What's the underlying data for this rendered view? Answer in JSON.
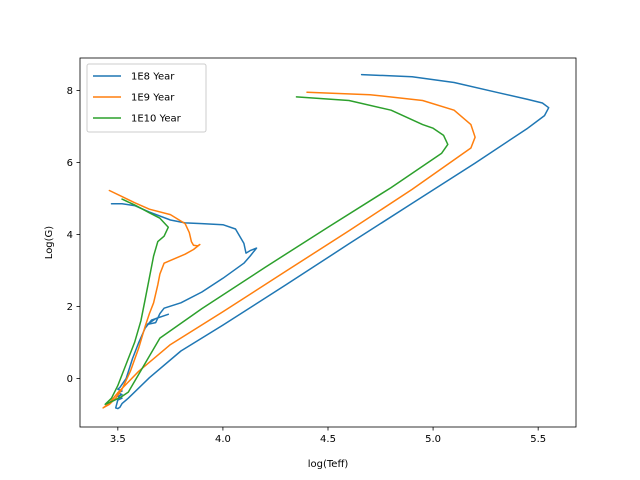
{
  "chart_data": {
    "type": "line",
    "xlabel": "log(Teff)",
    "ylabel": "Log(G)",
    "xlim": [
      3.32,
      5.68
    ],
    "ylim": [
      -1.35,
      8.9
    ],
    "grid": false,
    "legend_position": "top-left",
    "x_ticks": [
      {
        "value": 3.5,
        "label": "3.5"
      },
      {
        "value": 4.0,
        "label": "4.0"
      },
      {
        "value": 4.5,
        "label": "4.5"
      },
      {
        "value": 5.0,
        "label": "5.0"
      },
      {
        "value": 5.5,
        "label": "5.5"
      }
    ],
    "y_ticks": [
      {
        "value": 0,
        "label": "0"
      },
      {
        "value": 2,
        "label": "2"
      },
      {
        "value": 4,
        "label": "4"
      },
      {
        "value": 6,
        "label": "6"
      },
      {
        "value": 8,
        "label": "8"
      }
    ],
    "series": [
      {
        "name": "1E8 Year",
        "color": "#1f77b4",
        "points": [
          [
            4.66,
            8.44
          ],
          [
            4.9,
            8.38
          ],
          [
            5.1,
            8.22
          ],
          [
            5.3,
            7.95
          ],
          [
            5.45,
            7.75
          ],
          [
            5.52,
            7.65
          ],
          [
            5.55,
            7.52
          ],
          [
            5.53,
            7.3
          ],
          [
            5.45,
            6.95
          ],
          [
            5.2,
            5.98
          ],
          [
            4.9,
            4.86
          ],
          [
            4.6,
            3.74
          ],
          [
            4.3,
            2.6
          ],
          [
            4.0,
            1.48
          ],
          [
            3.8,
            0.76
          ],
          [
            3.65,
            0.02
          ],
          [
            3.55,
            -0.55
          ],
          [
            3.52,
            -0.7
          ],
          [
            3.51,
            -0.8
          ],
          [
            3.5,
            -0.84
          ],
          [
            3.49,
            -0.82
          ],
          [
            3.5,
            -0.6
          ],
          [
            3.52,
            -0.55
          ],
          [
            3.5,
            -0.5
          ],
          [
            3.52,
            -0.45
          ],
          [
            3.5,
            -0.4
          ],
          [
            3.52,
            -0.35
          ],
          [
            3.5,
            -0.3
          ],
          [
            3.51,
            -0.25
          ],
          [
            3.54,
            0.0
          ],
          [
            3.57,
            0.55
          ],
          [
            3.6,
            1.0
          ],
          [
            3.63,
            1.4
          ],
          [
            3.66,
            1.62
          ],
          [
            3.74,
            1.78
          ],
          [
            3.68,
            1.66
          ],
          [
            3.64,
            1.5
          ],
          [
            3.68,
            1.55
          ],
          [
            3.7,
            1.8
          ],
          [
            3.72,
            1.95
          ],
          [
            3.8,
            2.1
          ],
          [
            3.9,
            2.4
          ],
          [
            4.0,
            2.78
          ],
          [
            4.1,
            3.2
          ],
          [
            4.13,
            3.4
          ],
          [
            4.16,
            3.62
          ],
          [
            4.13,
            3.55
          ],
          [
            4.11,
            3.48
          ],
          [
            4.1,
            3.75
          ],
          [
            4.06,
            4.15
          ],
          [
            4.0,
            4.27
          ],
          [
            3.9,
            4.3
          ],
          [
            3.82,
            4.32
          ],
          [
            3.75,
            4.4
          ],
          [
            3.65,
            4.62
          ],
          [
            3.58,
            4.8
          ],
          [
            3.52,
            4.85
          ],
          [
            3.47,
            4.85
          ]
        ]
      },
      {
        "name": "1E9 Year",
        "color": "#ff7f0e",
        "points": [
          [
            4.4,
            7.95
          ],
          [
            4.7,
            7.88
          ],
          [
            4.95,
            7.72
          ],
          [
            5.1,
            7.45
          ],
          [
            5.18,
            7.05
          ],
          [
            5.2,
            6.7
          ],
          [
            5.18,
            6.4
          ],
          [
            4.9,
            5.25
          ],
          [
            4.6,
            4.1
          ],
          [
            4.3,
            2.98
          ],
          [
            4.0,
            1.85
          ],
          [
            3.75,
            0.94
          ],
          [
            3.6,
            0.2
          ],
          [
            3.5,
            -0.4
          ],
          [
            3.46,
            -0.68
          ],
          [
            3.43,
            -0.82
          ],
          [
            3.46,
            -0.72
          ],
          [
            3.49,
            -0.55
          ],
          [
            3.52,
            -0.3
          ],
          [
            3.56,
            0.2
          ],
          [
            3.6,
            0.85
          ],
          [
            3.63,
            1.45
          ],
          [
            3.65,
            1.8
          ],
          [
            3.67,
            2.1
          ],
          [
            3.69,
            2.6
          ],
          [
            3.7,
            2.9
          ],
          [
            3.72,
            3.2
          ],
          [
            3.76,
            3.3
          ],
          [
            3.82,
            3.45
          ],
          [
            3.86,
            3.58
          ],
          [
            3.89,
            3.72
          ],
          [
            3.88,
            3.68
          ],
          [
            3.86,
            3.7
          ],
          [
            3.85,
            3.8
          ],
          [
            3.84,
            4.05
          ],
          [
            3.82,
            4.3
          ],
          [
            3.75,
            4.55
          ],
          [
            3.65,
            4.7
          ],
          [
            3.58,
            4.88
          ],
          [
            3.52,
            5.05
          ],
          [
            3.46,
            5.22
          ]
        ]
      },
      {
        "name": "1E10 Year",
        "color": "#2ca02c",
        "points": [
          [
            4.35,
            7.82
          ],
          [
            4.6,
            7.72
          ],
          [
            4.8,
            7.45
          ],
          [
            4.95,
            7.05
          ],
          [
            5.0,
            6.95
          ],
          [
            5.05,
            6.75
          ],
          [
            5.07,
            6.5
          ],
          [
            5.04,
            6.25
          ],
          [
            4.8,
            5.3
          ],
          [
            4.5,
            4.2
          ],
          [
            4.2,
            3.08
          ],
          [
            3.9,
            1.94
          ],
          [
            3.7,
            1.12
          ],
          [
            3.55,
            -0.38
          ],
          [
            3.52,
            -0.5
          ],
          [
            3.48,
            -0.62
          ],
          [
            3.44,
            -0.72
          ],
          [
            3.47,
            -0.55
          ],
          [
            3.5,
            -0.2
          ],
          [
            3.54,
            0.4
          ],
          [
            3.58,
            1.0
          ],
          [
            3.61,
            1.6
          ],
          [
            3.63,
            2.2
          ],
          [
            3.65,
            2.8
          ],
          [
            3.67,
            3.4
          ],
          [
            3.69,
            3.8
          ],
          [
            3.72,
            3.95
          ],
          [
            3.74,
            4.2
          ],
          [
            3.7,
            4.45
          ],
          [
            3.65,
            4.6
          ],
          [
            3.58,
            4.82
          ],
          [
            3.52,
            4.98
          ]
        ]
      }
    ]
  }
}
